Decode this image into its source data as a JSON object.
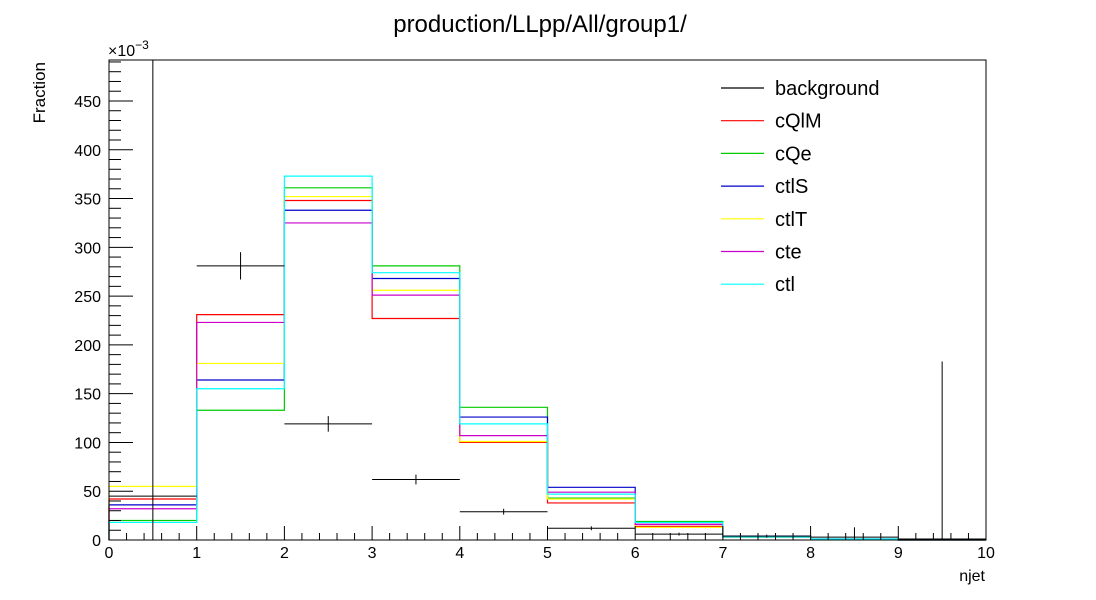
{
  "chart_data": {
    "type": "histogram",
    "title": "production/LLpp/All/group1/",
    "xlabel": "njet",
    "ylabel": "Fraction",
    "y_multiplier_label": "×10",
    "y_multiplier_exponent": "−3",
    "xlim": [
      0,
      10
    ],
    "ylim": [
      0,
      492
    ],
    "x_ticks": [
      0,
      1,
      2,
      3,
      4,
      5,
      6,
      7,
      8,
      9,
      10
    ],
    "x_tick_labels": [
      "0",
      "1",
      "2",
      "3",
      "4",
      "5",
      "6",
      "7",
      "8",
      "9",
      "10"
    ],
    "y_ticks": [
      0,
      50,
      100,
      150,
      200,
      250,
      300,
      350,
      400,
      450
    ],
    "y_tick_labels": [
      "0",
      "50",
      "100",
      "150",
      "200",
      "250",
      "300",
      "350",
      "400",
      "450"
    ],
    "bin_edges": [
      0,
      1,
      2,
      3,
      4,
      5,
      6,
      7,
      8,
      9,
      10
    ],
    "legend_position": "top-right",
    "grid": false,
    "background": {
      "name": "background",
      "color": "#000000",
      "points": [
        {
          "x": 0.5,
          "y": 45,
          "err": 520
        },
        {
          "x": 1.5,
          "y": 281,
          "err": 14
        },
        {
          "x": 2.5,
          "y": 119,
          "err": 8
        },
        {
          "x": 3.5,
          "y": 62,
          "err": 5
        },
        {
          "x": 4.5,
          "y": 29,
          "err": 3
        },
        {
          "x": 5.5,
          "y": 12,
          "err": 2
        },
        {
          "x": 6.5,
          "y": 6,
          "err": 1.5
        },
        {
          "x": 7.5,
          "y": 4,
          "err": 1.5
        },
        {
          "x": 8.5,
          "y": 3,
          "err": 10
        },
        {
          "x": 9.5,
          "y": 1,
          "err": 182
        }
      ]
    },
    "series": [
      {
        "name": "cQlM",
        "color": "#ff0000",
        "values": [
          42,
          231,
          348,
          227,
          100,
          38,
          14,
          3,
          0.5,
          0
        ]
      },
      {
        "name": "cQe",
        "color": "#00cc00",
        "values": [
          20,
          133,
          361,
          281,
          136,
          43,
          19,
          3,
          0.5,
          0
        ]
      },
      {
        "name": "ctlS",
        "color": "#0000cc",
        "values": [
          36,
          164,
          338,
          268,
          126,
          54,
          16,
          4,
          1,
          0
        ]
      },
      {
        "name": "ctlT",
        "color": "#ffff00",
        "values": [
          55,
          181,
          352,
          256,
          101,
          42,
          13,
          3,
          0.5,
          0
        ]
      },
      {
        "name": "cte",
        "color": "#cc00cc",
        "values": [
          32,
          223,
          325,
          251,
          107,
          49,
          16,
          3,
          0.5,
          0
        ]
      },
      {
        "name": "ctl",
        "color": "#00ffff",
        "values": [
          18,
          155,
          373,
          274,
          119,
          47,
          18,
          3,
          1,
          0
        ]
      }
    ]
  }
}
